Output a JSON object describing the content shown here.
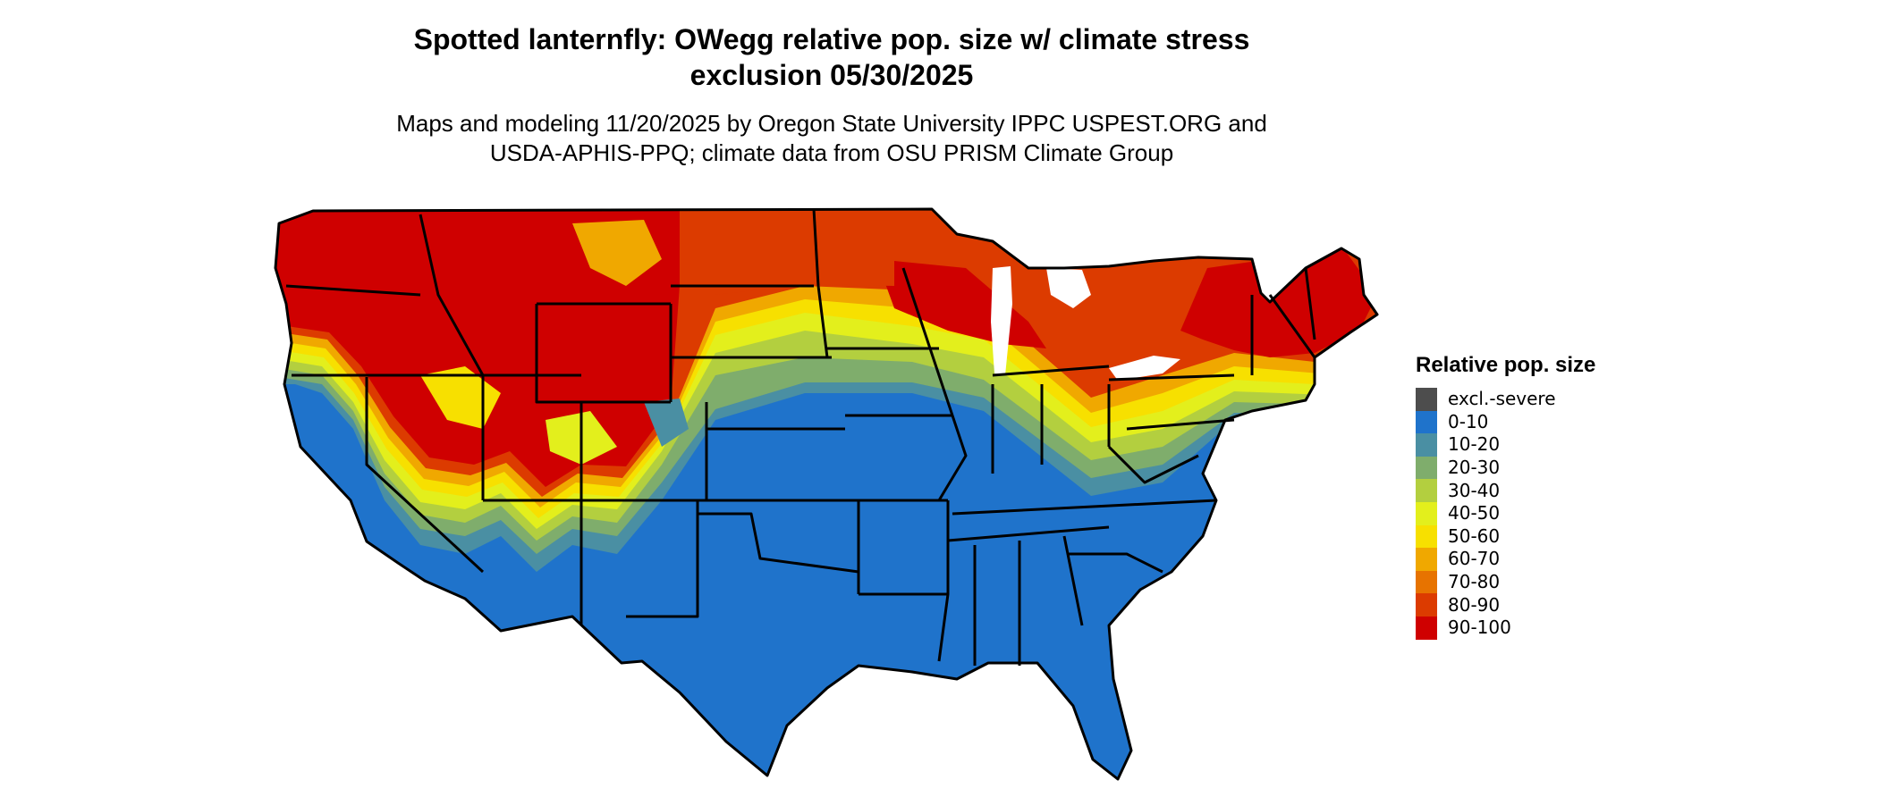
{
  "title": {
    "line1": "Spotted lanternfly: OWegg relative pop. size w/ climate stress",
    "line2": "exclusion 05/30/2025"
  },
  "subtitle": {
    "line1": "Maps and modeling 11/20/2025 by Oregon State University IPPC USPEST.ORG and",
    "line2": "USDA-APHIS-PPQ; climate data from OSU PRISM Climate Group"
  },
  "legend": {
    "title": "Relative pop. size",
    "items": [
      {
        "label": "excl.-severe",
        "color": "#4d4d4d"
      },
      {
        "label": "0-10",
        "color": "#1f73cb"
      },
      {
        "label": "10-20",
        "color": "#4a8fa3"
      },
      {
        "label": "20-30",
        "color": "#7fad6c"
      },
      {
        "label": "30-40",
        "color": "#b3cf3f"
      },
      {
        "label": "40-50",
        "color": "#e3ef1c"
      },
      {
        "label": "50-60",
        "color": "#f7e000"
      },
      {
        "label": "60-70",
        "color": "#f0a800"
      },
      {
        "label": "70-80",
        "color": "#e77300"
      },
      {
        "label": "80-90",
        "color": "#dc3b00"
      },
      {
        "label": "90-100",
        "color": "#cf0000"
      }
    ]
  },
  "map_colors": {
    "background": "#ffffff",
    "state_border": "#000000"
  }
}
